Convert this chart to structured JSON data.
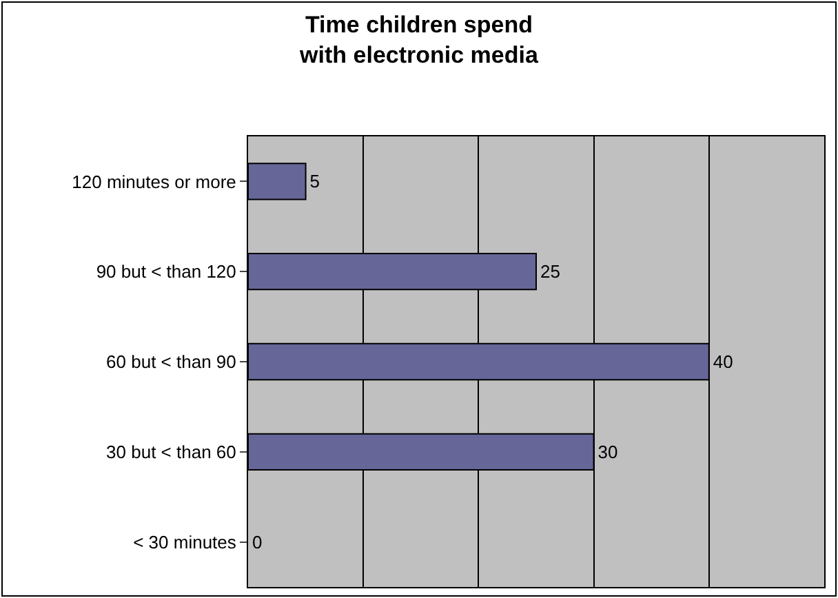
{
  "chart_data": {
    "type": "bar",
    "orientation": "horizontal",
    "title": "Time children spend\nwith electronic media",
    "categories": [
      "120 minutes or more",
      "90 but < than 120",
      "60 but < than 90",
      "30 but < than 60",
      "< 30 minutes"
    ],
    "values": [
      5,
      25,
      40,
      30,
      0
    ],
    "color": "#666699",
    "data_labels": true,
    "grid": "x",
    "tick_labels": "y",
    "xlim": [
      0,
      50
    ],
    "xticks": [
      {
        "value": 0,
        "label": null
      },
      {
        "value": 10,
        "label": null
      },
      {
        "value": 20,
        "label": null
      },
      {
        "value": 30,
        "label": null
      },
      {
        "value": 40,
        "label": null
      },
      {
        "value": 50,
        "label": null
      }
    ]
  }
}
